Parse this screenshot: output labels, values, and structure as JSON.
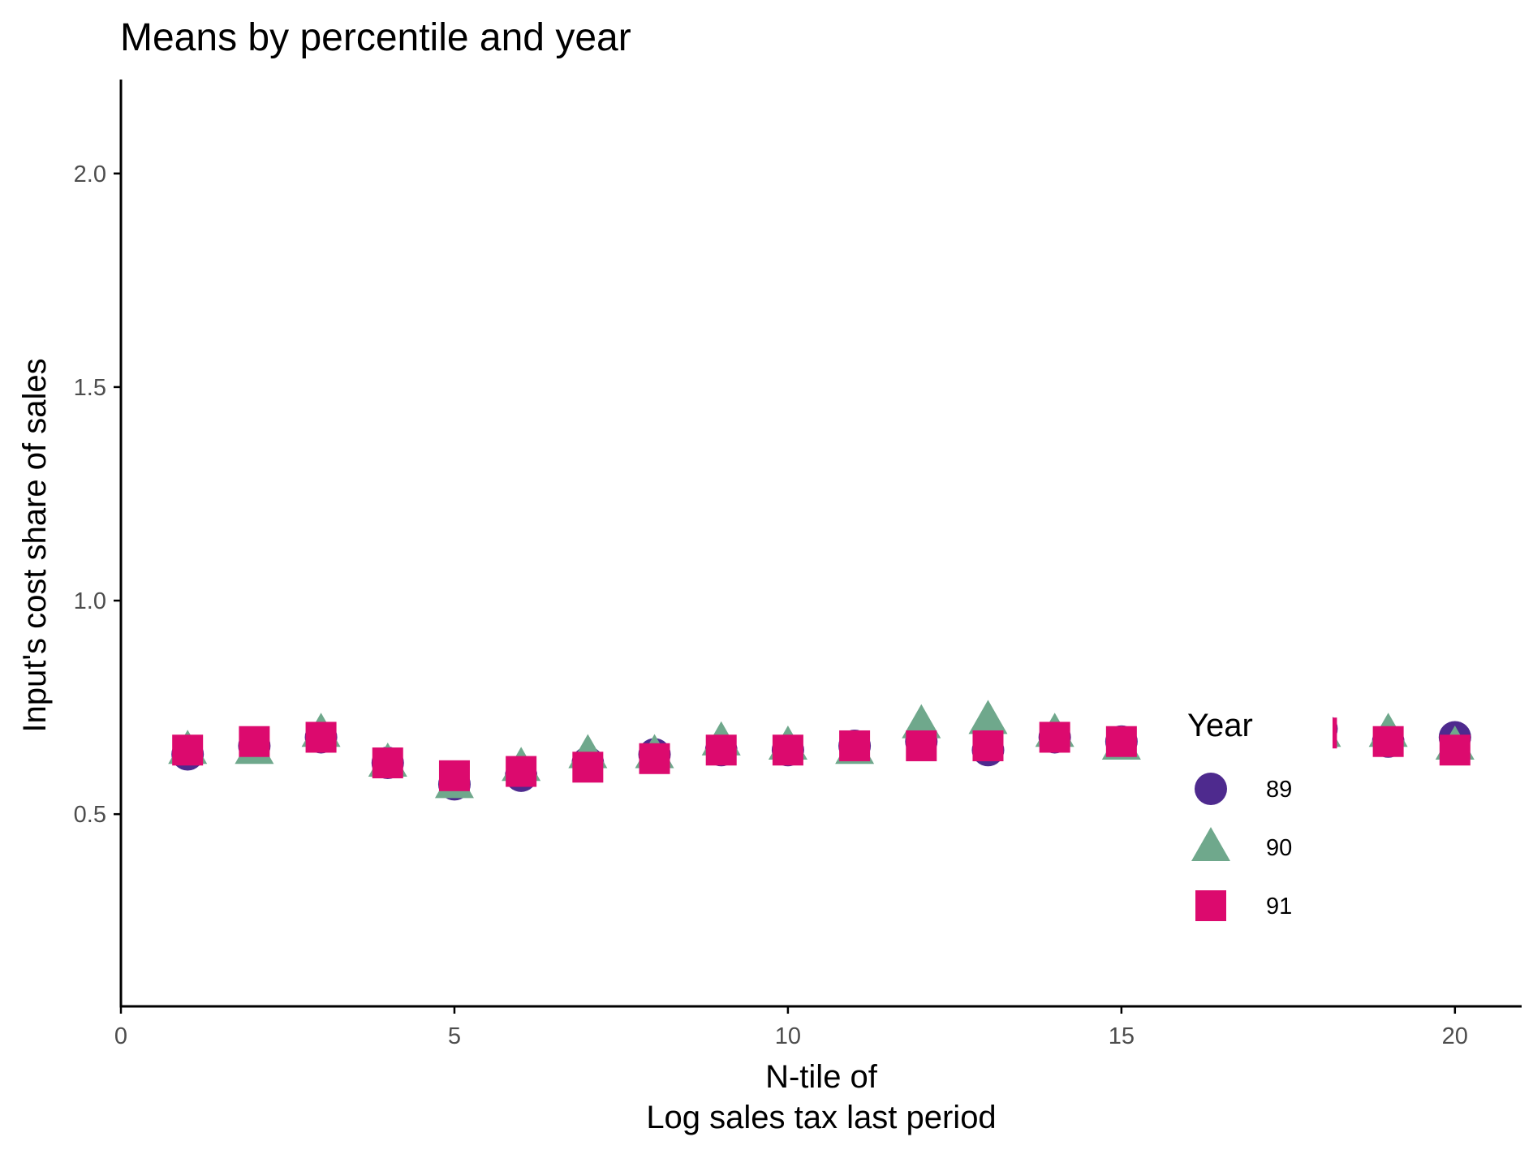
{
  "chart_data": {
    "type": "scatter",
    "title": "Means by percentile and year",
    "xlabel_lines": [
      "N-tile of",
      "Log sales tax last period"
    ],
    "ylabel": "Input's cost share of sales",
    "xlim": [
      0,
      21
    ],
    "ylim": [
      0.05,
      2.22
    ],
    "xticks": [
      0,
      5,
      10,
      15,
      20
    ],
    "xtick_labels": [
      "0",
      "5",
      "10",
      "15",
      "20"
    ],
    "yticks": [
      0.5,
      1.0,
      1.5,
      2.0
    ],
    "ytick_labels": [
      "0.5",
      "1.0",
      "1.5",
      "2.0"
    ],
    "grid": false,
    "legend": {
      "title": "Year",
      "position": "right-inside-bottom"
    },
    "x": [
      1,
      2,
      3,
      4,
      5,
      6,
      7,
      8,
      9,
      10,
      11,
      12,
      13,
      14,
      15,
      16,
      17,
      18,
      19,
      20
    ],
    "series": [
      {
        "name": "89",
        "marker": "circle",
        "color": "#4e2a8e",
        "values": [
          0.64,
          0.66,
          0.68,
          0.62,
          0.57,
          0.59,
          0.62,
          0.64,
          0.65,
          0.65,
          0.66,
          0.67,
          0.65,
          0.68,
          0.67,
          0.66,
          0.67,
          0.7,
          0.67,
          0.68
        ]
      },
      {
        "name": "90",
        "marker": "triangle",
        "color": "#6fa88c",
        "values": [
          0.65,
          0.65,
          0.69,
          0.62,
          0.57,
          0.61,
          0.64,
          0.64,
          0.67,
          0.66,
          0.65,
          0.71,
          0.72,
          0.69,
          0.66,
          0.68,
          0.67,
          0.69,
          0.69,
          0.66
        ]
      },
      {
        "name": "91",
        "marker": "square",
        "color": "#dc0a6e",
        "values": [
          0.65,
          0.67,
          0.68,
          0.62,
          0.59,
          0.6,
          0.61,
          0.63,
          0.65,
          0.65,
          0.66,
          0.66,
          0.66,
          0.68,
          0.67,
          0.66,
          0.67,
          0.69,
          0.67,
          0.65
        ]
      }
    ]
  }
}
